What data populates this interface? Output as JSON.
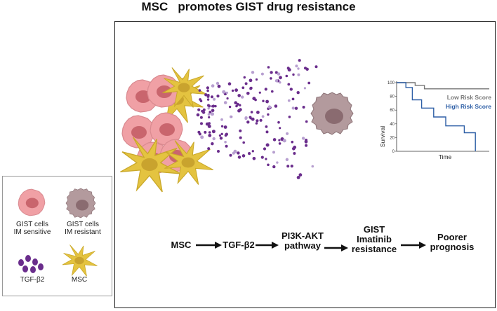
{
  "title": "MSC   promotes GIST drug resistance",
  "flow": {
    "steps": [
      "MSC",
      "TGF-β2",
      "PI3K-AKT\npathway",
      "GIST\nImatinib\nresistance",
      "Poorer\nprognosis"
    ]
  },
  "legend": {
    "gist_sensitive": "GIST cells\nIM sensitive",
    "gist_resistant": "GIST cells\nIM resistant",
    "tgf": "TGF-β2",
    "msc": "MSC"
  },
  "chart_data": {
    "type": "line",
    "xlabel": "Time",
    "ylabel": "Survival",
    "ylim": [
      0,
      100
    ],
    "yticks": [
      0,
      20,
      40,
      60,
      80,
      100
    ],
    "grid": false,
    "legend_position": "top-right",
    "series": [
      {
        "name": "Low Risk Score",
        "color": "#777777",
        "x": [
          0,
          20,
          20,
          30,
          30,
          60,
          60,
          100
        ],
        "y": [
          100,
          100,
          96,
          96,
          91,
          91,
          91,
          91
        ]
      },
      {
        "name": "High Risk Score",
        "color": "#2e5fa6",
        "x": [
          0,
          10,
          10,
          17,
          17,
          27,
          27,
          40,
          40,
          53,
          53,
          73,
          73,
          85,
          85
        ],
        "y": [
          100,
          100,
          93,
          93,
          75,
          75,
          63,
          63,
          50,
          50,
          37,
          37,
          27,
          27,
          0
        ]
      }
    ]
  },
  "colors": {
    "gist_cell_fill": "#f0a0a5",
    "gist_cell_nucleus": "#c9656d",
    "resistant_cell_fill": "#b39a9d",
    "resistant_cell_nucleus": "#8a6b70",
    "msc_fill": "#e4c340",
    "tgf_dark": "#6a2d8c",
    "tgf_light": "#b79fd0"
  }
}
